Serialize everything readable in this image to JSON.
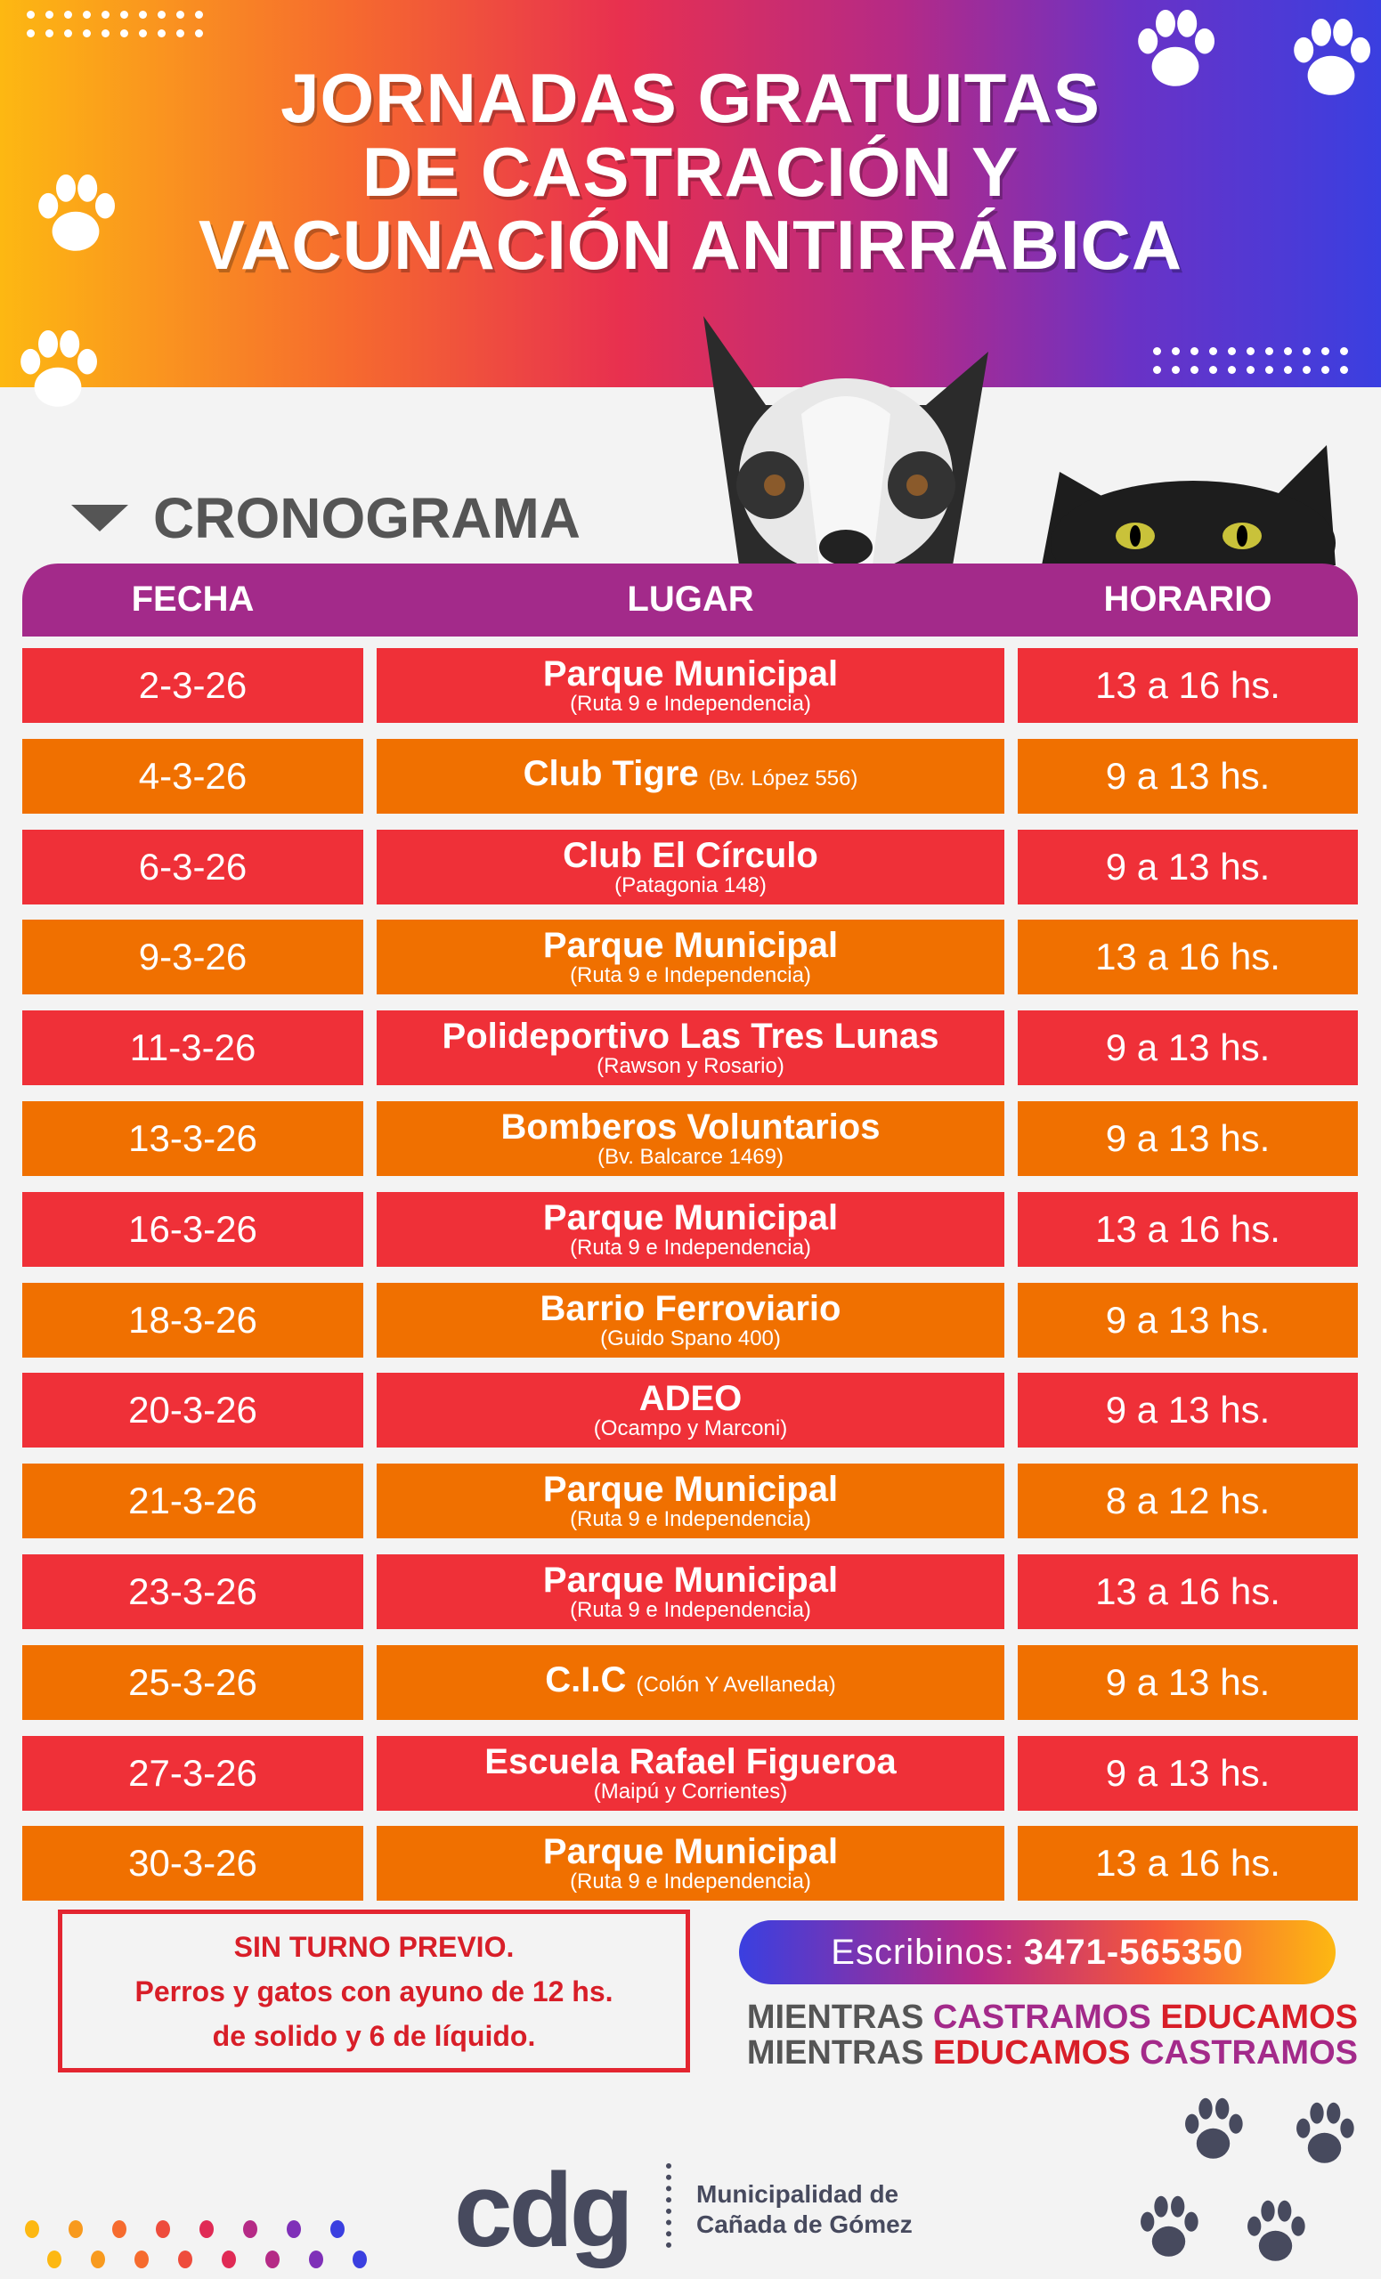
{
  "header": {
    "title_lines": [
      "JORNADAS GRATUITAS",
      "DE CASTRACIÓN Y",
      "VACUNACIÓN ANTIRRÁBICA"
    ]
  },
  "section_title": "CRONOGRAMA",
  "table": {
    "columns": [
      "FECHA",
      "LUGAR",
      "HORARIO"
    ],
    "rows": [
      {
        "fecha": "2-3-26",
        "lugar": "Parque Municipal",
        "direccion": "(Ruta 9 e Independencia)",
        "horario": "13 a 16 hs."
      },
      {
        "fecha": "4-3-26",
        "lugar": "Club Tigre",
        "direccion": "(Bv. López 556)",
        "inline": true,
        "horario": "9 a 13 hs."
      },
      {
        "fecha": "6-3-26",
        "lugar": "Club El Círculo",
        "direccion": "(Patagonia 148)",
        "horario": "9 a 13 hs."
      },
      {
        "fecha": "9-3-26",
        "lugar": "Parque Municipal",
        "direccion": "(Ruta 9 e Independencia)",
        "horario": "13 a 16 hs."
      },
      {
        "fecha": "11-3-26",
        "lugar": "Polideportivo Las Tres Lunas",
        "direccion": "(Rawson y Rosario)",
        "horario": "9 a 13 hs."
      },
      {
        "fecha": "13-3-26",
        "lugar": "Bomberos Voluntarios",
        "direccion": "(Bv. Balcarce 1469)",
        "horario": "9 a 13 hs."
      },
      {
        "fecha": "16-3-26",
        "lugar": "Parque Municipal",
        "direccion": "(Ruta 9 e Independencia)",
        "horario": "13 a 16 hs."
      },
      {
        "fecha": "18-3-26",
        "lugar": "Barrio Ferroviario",
        "direccion": "(Guido Spano 400)",
        "horario": "9 a 13 hs."
      },
      {
        "fecha": "20-3-26",
        "lugar": "ADEO",
        "direccion": "(Ocampo y Marconi)",
        "horario": "9 a 13 hs."
      },
      {
        "fecha": "21-3-26",
        "lugar": "Parque Municipal",
        "direccion": "(Ruta 9 e Independencia)",
        "horario": "8 a 12 hs."
      },
      {
        "fecha": "23-3-26",
        "lugar": "Parque Municipal",
        "direccion": "(Ruta 9 e Independencia)",
        "horario": "13 a 16 hs."
      },
      {
        "fecha": "25-3-26",
        "lugar": "C.I.C",
        "direccion": "(Colón Y Avellaneda)",
        "inline": true,
        "horario": "9 a 13 hs."
      },
      {
        "fecha": "27-3-26",
        "lugar": "Escuela Rafael Figueroa",
        "direccion": "(Maipú y Corrientes)",
        "horario": "9 a 13 hs."
      },
      {
        "fecha": "30-3-26",
        "lugar": "Parque Municipal",
        "direccion": "(Ruta 9 e Independencia)",
        "horario": "13 a 16 hs."
      }
    ]
  },
  "note": {
    "lines": [
      "SIN TURNO PREVIO.",
      "Perros y gatos con ayuno de 12 hs.",
      "de solido y 6 de líquido."
    ]
  },
  "contact": {
    "label": "Escribinos:",
    "phone": "3471-565350"
  },
  "slogan": {
    "line1": [
      "MIENTRAS",
      "CASTRAMOS",
      "EDUCAMOS"
    ],
    "line2": [
      "MIENTRAS",
      "EDUCAMOS",
      "CASTRAMOS"
    ]
  },
  "logo": {
    "mark": "cdg",
    "name_lines": [
      "Municipalidad de",
      "Cañada de Gómez"
    ]
  },
  "colors": {
    "red": "#ef3038",
    "orange": "#f07000",
    "purple": "#a32a8a",
    "background": "#f3f3f3"
  }
}
